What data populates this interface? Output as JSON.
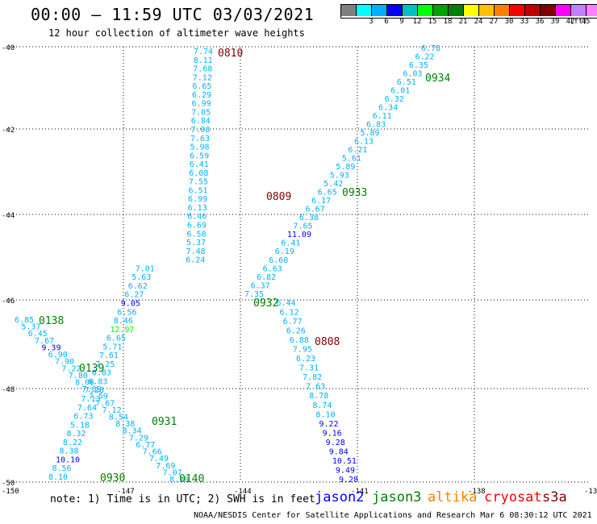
{
  "header": {
    "title": "00:00 – 11:59 UTC 03/03/2021",
    "subtitle": "12 hour collection of altimeter wave heights"
  },
  "scale": {
    "colors": [
      "#7f7f7f",
      "#00ffff",
      "#00b0ff",
      "#0000ff",
      "#00c0c0",
      "#00ff00",
      "#00a000",
      "#008000",
      "#ffff00",
      "#ffc000",
      "#ff8000",
      "#ff0000",
      "#c00000",
      "#800000",
      "#ff00ff",
      "#c080ff",
      "#ff80ff",
      "#000000"
    ],
    "labels": [
      "3",
      "6",
      "9",
      "12",
      "15",
      "18",
      "21",
      "24",
      "27",
      "30",
      "33",
      "36",
      "39",
      "42",
      "45",
      "70"
    ],
    "unit": "(ft)"
  },
  "map": {
    "y_labels": [
      "-40",
      "-42",
      "-44",
      "-46",
      "-48",
      "-50"
    ],
    "x_labels": [
      "-150",
      "-147",
      "-144",
      "-141",
      "-138",
      "-13"
    ],
    "tracks": [
      {
        "pass": "0810",
        "color": "#800000",
        "points": [
          "7.74",
          "8.11",
          "7.68",
          "7.12",
          "6.65",
          "6.29",
          "6.99",
          "7.05",
          "6.84",
          "7.08",
          "7.63",
          "5.98",
          "6.59",
          "6.41",
          "6.08",
          "7.55",
          "6.51",
          "6.99",
          "6.13",
          "6.46",
          "6.69",
          "6.58",
          "5.37",
          "7.48",
          "6.24",
          "7.01",
          "5.63",
          "6.62",
          "6.27",
          "9.05",
          "6.56",
          "8.46",
          "12.97",
          "6.65",
          "5.71",
          "7.61",
          "7.25",
          "6.83",
          "6.83",
          "7.28",
          "7.13",
          "7.64",
          "6.73",
          "5.18",
          "8.32",
          "8.22",
          "8.38",
          "10.10",
          "8.56",
          "8.10"
        ]
      },
      {
        "pass": "0934",
        "color": "#008000",
        "points": [
          "6.78",
          "6.22",
          "6.35",
          "6.03",
          "6.51",
          "6.01",
          "6.32",
          "6.34",
          "6.11",
          "6.83",
          "5.89",
          "6.13",
          "6.21",
          "5.61",
          "5.89",
          "5.93",
          "5.42",
          "6.65",
          "6.17",
          "6.67",
          "6.38",
          "7.65",
          "11.09",
          "6.41",
          "6.19",
          "6.60",
          "6.63",
          "6.82",
          "6.37",
          "7.35",
          "6.44",
          "6.12",
          "6.77",
          "6.26",
          "6.88",
          "7.95",
          "6.23",
          "7.31",
          "7.82",
          "7.63",
          "8.78",
          "8.74",
          "8.10",
          "9.22",
          "9.16",
          "9.28",
          "9.84",
          "10.51",
          "9.49",
          "9.28"
        ]
      },
      {
        "pass": "0138",
        "color": "#008000",
        "points": [
          "6.85",
          "5.37",
          "6.45",
          "7.67",
          "9.39",
          "6.90",
          "7.90",
          "7.22",
          "7.80",
          "8.06",
          "7.09",
          "7.59",
          "7.67",
          "7.12",
          "8.54",
          "8.38",
          "8.34",
          "7.29",
          "6.77",
          "7.66",
          "7.49",
          "7.69",
          "7.07",
          "8.10"
        ]
      }
    ],
    "pass_labels": [
      {
        "text": "0810",
        "color": "#800000"
      },
      {
        "text": "0934",
        "color": "#008000"
      },
      {
        "text": "0809",
        "color": "#800000"
      },
      {
        "text": "0933",
        "color": "#008000"
      },
      {
        "text": "0932",
        "color": "#008000"
      },
      {
        "text": "0808",
        "color": "#800000"
      },
      {
        "text": "0138",
        "color": "#008000"
      },
      {
        "text": "0139",
        "color": "#008000"
      },
      {
        "text": "0931",
        "color": "#008000"
      },
      {
        "text": "0930",
        "color": "#008000"
      },
      {
        "text": "0140",
        "color": "#008000"
      }
    ]
  },
  "footer": {
    "note": "note: 1) Time is in UTC; 2) SWH is in feet",
    "credit": "NOAA/NESDIS Center for Satellite Applications and Research   Mar  6 08:30:12 UTC 2021",
    "legend": [
      {
        "label": "jason2",
        "color": "#0000ff"
      },
      {
        "label": "jason3",
        "color": "#008000"
      },
      {
        "label": "altika",
        "color": "#ff8000"
      },
      {
        "label": "cryosat",
        "color": "#ff0000"
      },
      {
        "label": "s3a",
        "color": "#800000"
      }
    ]
  }
}
